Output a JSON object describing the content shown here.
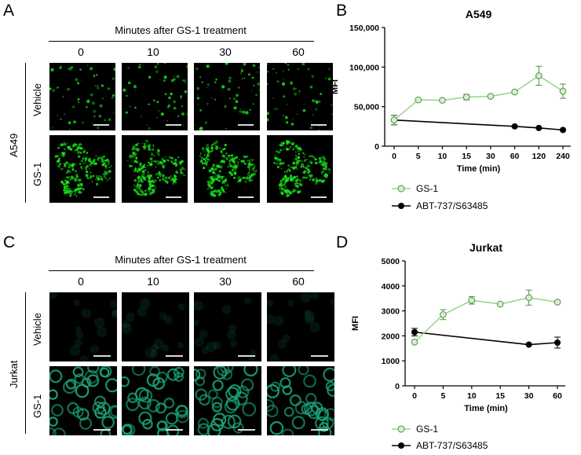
{
  "panels": {
    "A": {
      "letter": "A",
      "header": "Minutes after GS-1 treatment",
      "columns": [
        "0",
        "10",
        "30",
        "60"
      ],
      "row_group": "A549",
      "rows": [
        "Vehicle",
        "GS-1"
      ],
      "tint": "#19e019"
    },
    "C": {
      "letter": "C",
      "header": "Minutes after GS-1 treatment",
      "columns": [
        "0",
        "10",
        "30",
        "60"
      ],
      "row_group": "Jurkat",
      "rows": [
        "Vehicle",
        "GS-1"
      ],
      "tint": "#1aa57a"
    },
    "B": {
      "letter": "B"
    },
    "D": {
      "letter": "D"
    }
  },
  "chart_data": [
    {
      "type": "line",
      "title": "A549",
      "xlabel": "Time (min)",
      "ylabel": "MFI",
      "categories": [
        "0",
        "5",
        "10",
        "15",
        "30",
        "60",
        "120",
        "240"
      ],
      "yticks": [
        "0",
        "50,000",
        "100,000",
        "150,000"
      ],
      "ylim": [
        0,
        150000
      ],
      "series": [
        {
          "name": "GS-1",
          "color": "#9bd78e",
          "marker": "open-circle",
          "x": [
            "0",
            "5",
            "10",
            "15",
            "30",
            "60",
            "120",
            "240"
          ],
          "values": [
            33000,
            58500,
            58000,
            62000,
            63000,
            68500,
            89000,
            69500
          ],
          "errors": [
            6000,
            0,
            0,
            3500,
            0,
            0,
            12000,
            9000
          ]
        },
        {
          "name": "ABT-737/S63485",
          "color": "#000000",
          "marker": "filled-circle",
          "x": [
            "0",
            "60",
            "120",
            "240"
          ],
          "values": [
            33000,
            25000,
            23000,
            20500
          ],
          "errors": [
            6000,
            0,
            0,
            0
          ]
        }
      ]
    },
    {
      "type": "line",
      "title": "Jurkat",
      "xlabel": "Time (min)",
      "ylabel": "MFI",
      "categories": [
        "0",
        "5",
        "10",
        "15",
        "30",
        "60"
      ],
      "yticks": [
        "0",
        "1000",
        "2000",
        "3000",
        "4000",
        "5000"
      ],
      "ylim": [
        0,
        5000
      ],
      "series": [
        {
          "name": "GS-1",
          "color": "#9bd78e",
          "marker": "open-circle",
          "x": [
            "0",
            "5",
            "10",
            "15",
            "30",
            "60"
          ],
          "values": [
            1750,
            2850,
            3420,
            3270,
            3530,
            3350
          ],
          "errors": [
            0,
            200,
            150,
            0,
            300,
            0
          ]
        },
        {
          "name": "ABT-737/S63485",
          "color": "#000000",
          "marker": "filled-circle",
          "x": [
            "0",
            "30",
            "60"
          ],
          "values": [
            2150,
            1650,
            1730
          ],
          "errors": [
            150,
            0,
            220
          ]
        }
      ]
    }
  ]
}
